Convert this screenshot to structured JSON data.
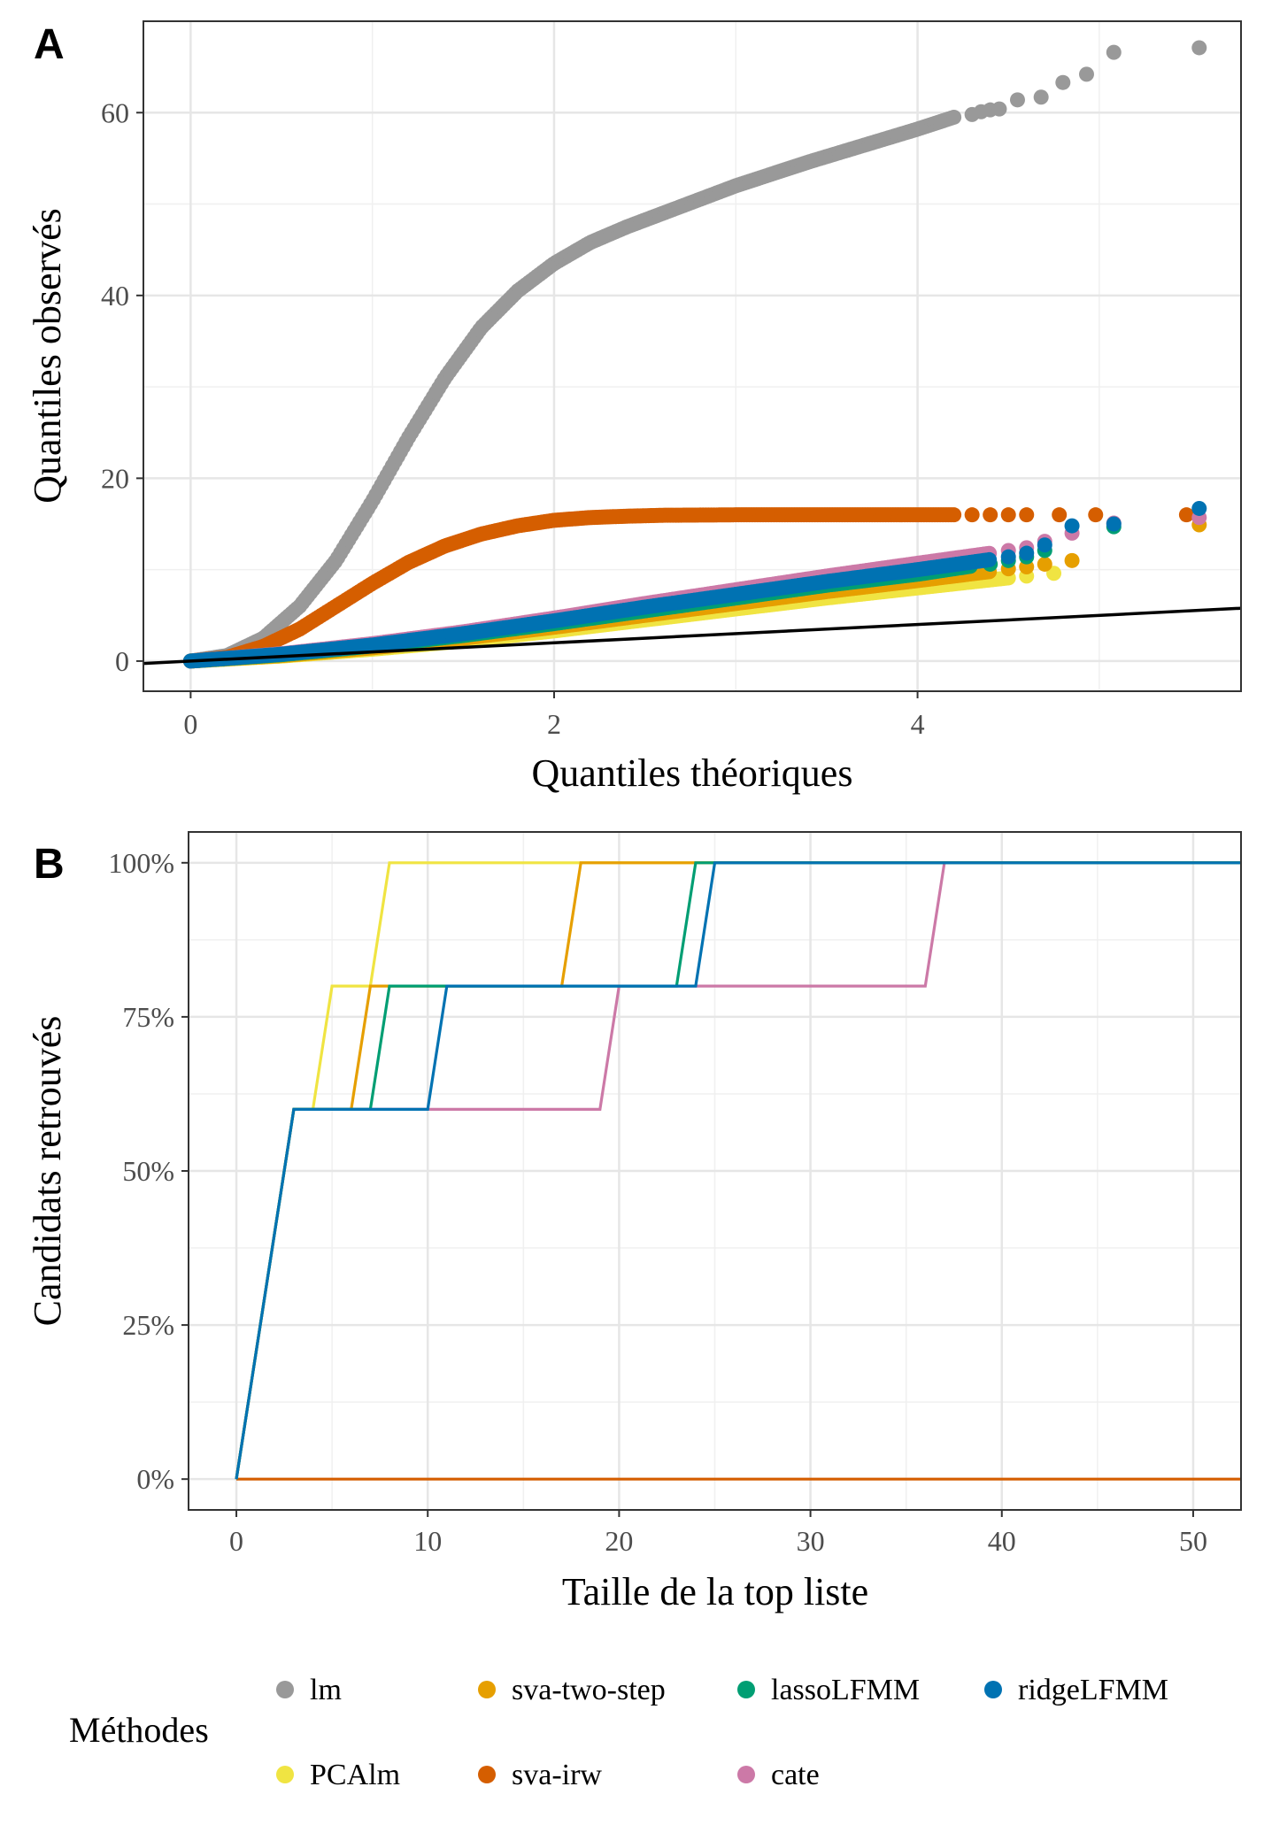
{
  "legend": {
    "title": "Méthodes",
    "position": "bottom",
    "items": [
      {
        "label": "lm",
        "color": "#999999"
      },
      {
        "label": "PCAlm",
        "color": "#F0E442"
      },
      {
        "label": "sva-two-step",
        "color": "#E69F00"
      },
      {
        "label": "sva-irw",
        "color": "#D55E00"
      },
      {
        "label": "lassoLFMM",
        "color": "#009E73"
      },
      {
        "label": "cate",
        "color": "#CC79A7"
      },
      {
        "label": "ridgeLFMM",
        "color": "#0072B2"
      }
    ]
  },
  "chart_data": [
    {
      "panel": "A",
      "type": "scatter",
      "xlabel": "Quantiles théoriques",
      "ylabel": "Quantiles observés",
      "xlim": [
        -0.26,
        5.78
      ],
      "ylim": [
        -3.3,
        70
      ],
      "xticks": [
        {
          "v": 0,
          "label": "0"
        },
        {
          "v": 2,
          "label": "2"
        },
        {
          "v": 4,
          "label": "4"
        }
      ],
      "yticks": [
        {
          "v": 0,
          "label": "0"
        },
        {
          "v": 20,
          "label": "20"
        },
        {
          "v": 40,
          "label": "40"
        },
        {
          "v": 60,
          "label": "60"
        }
      ],
      "grid": true,
      "reference_line": {
        "slope": 1,
        "intercept": 0,
        "color": "#000000"
      },
      "series": [
        {
          "name": "lm",
          "color": "#999999",
          "curve": [
            [
              0,
              0
            ],
            [
              0.2,
              0.6
            ],
            [
              0.4,
              2.5
            ],
            [
              0.6,
              6
            ],
            [
              0.8,
              11
            ],
            [
              1.0,
              17.5
            ],
            [
              1.2,
              24.5
            ],
            [
              1.4,
              31
            ],
            [
              1.6,
              36.5
            ],
            [
              1.8,
              40.5
            ],
            [
              2.0,
              43.5
            ],
            [
              2.2,
              45.8
            ],
            [
              2.4,
              47.5
            ],
            [
              2.6,
              49
            ],
            [
              2.8,
              50.5
            ],
            [
              3.0,
              52
            ],
            [
              3.2,
              53.3
            ],
            [
              3.4,
              54.6
            ],
            [
              3.6,
              55.8
            ],
            [
              3.8,
              57
            ],
            [
              4.0,
              58.2
            ],
            [
              4.2,
              59.5
            ]
          ],
          "tail": [
            [
              4.3,
              59.8
            ],
            [
              4.35,
              60.1
            ],
            [
              4.4,
              60.3
            ],
            [
              4.45,
              60.4
            ],
            [
              4.55,
              61.4
            ],
            [
              4.68,
              61.7
            ],
            [
              4.8,
              63.3
            ],
            [
              4.93,
              64.2
            ],
            [
              5.08,
              66.6
            ],
            [
              5.55,
              67.1
            ]
          ]
        },
        {
          "name": "sva-irw",
          "color": "#D55E00",
          "curve": [
            [
              0,
              0
            ],
            [
              0.2,
              0.4
            ],
            [
              0.4,
              1.6
            ],
            [
              0.6,
              3.5
            ],
            [
              0.8,
              6
            ],
            [
              1.0,
              8.5
            ],
            [
              1.2,
              10.8
            ],
            [
              1.4,
              12.6
            ],
            [
              1.6,
              13.9
            ],
            [
              1.8,
              14.8
            ],
            [
              2.0,
              15.4
            ],
            [
              2.2,
              15.7
            ],
            [
              2.4,
              15.85
            ],
            [
              2.6,
              15.95
            ],
            [
              3.0,
              16
            ],
            [
              4.2,
              16
            ]
          ],
          "tail": [
            [
              4.3,
              16
            ],
            [
              4.4,
              16
            ],
            [
              4.5,
              16
            ],
            [
              4.6,
              16
            ],
            [
              4.78,
              16
            ],
            [
              4.98,
              16
            ],
            [
              5.48,
              16
            ]
          ]
        },
        {
          "name": "PCAlm",
          "color": "#F0E442",
          "curve": [
            [
              0,
              0
            ],
            [
              0.5,
              0.55
            ],
            [
              1.0,
              1.3
            ],
            [
              1.5,
              2.2
            ],
            [
              2.0,
              3.3
            ],
            [
              2.5,
              4.5
            ],
            [
              3.0,
              5.7
            ],
            [
              3.5,
              6.9
            ],
            [
              4.0,
              8.0
            ],
            [
              4.5,
              9.1
            ]
          ],
          "tail": [
            [
              4.6,
              9.3
            ],
            [
              4.75,
              9.6
            ]
          ]
        },
        {
          "name": "sva-two-step",
          "color": "#E69F00",
          "curve": [
            [
              0,
              0
            ],
            [
              0.5,
              0.6
            ],
            [
              1.0,
              1.45
            ],
            [
              1.5,
              2.5
            ],
            [
              2.0,
              3.7
            ],
            [
              2.5,
              5.0
            ],
            [
              3.0,
              6.3
            ],
            [
              3.5,
              7.6
            ],
            [
              4.0,
              8.8
            ],
            [
              4.4,
              9.8
            ]
          ],
          "tail": [
            [
              4.5,
              10.1
            ],
            [
              4.6,
              10.3
            ],
            [
              4.7,
              10.6
            ],
            [
              4.85,
              11.0
            ],
            [
              5.55,
              14.9
            ]
          ]
        },
        {
          "name": "lassoLFMM",
          "color": "#009E73",
          "curve": [
            [
              0,
              0
            ],
            [
              0.5,
              0.7
            ],
            [
              1.0,
              1.65
            ],
            [
              1.5,
              2.8
            ],
            [
              2.0,
              4.1
            ],
            [
              2.5,
              5.5
            ],
            [
              3.0,
              6.9
            ],
            [
              3.5,
              8.3
            ],
            [
              4.0,
              9.5
            ],
            [
              4.3,
              10.4
            ]
          ],
          "tail": [
            [
              4.4,
              10.6
            ],
            [
              4.5,
              11.0
            ],
            [
              4.6,
              11.4
            ],
            [
              4.7,
              12.1
            ],
            [
              5.08,
              14.7
            ]
          ]
        },
        {
          "name": "cate",
          "color": "#CC79A7",
          "curve": [
            [
              0,
              0
            ],
            [
              0.5,
              0.8
            ],
            [
              1.0,
              1.9
            ],
            [
              1.5,
              3.2
            ],
            [
              2.0,
              4.7
            ],
            [
              2.5,
              6.3
            ],
            [
              3.0,
              7.8
            ],
            [
              3.5,
              9.3
            ],
            [
              4.0,
              10.7
            ],
            [
              4.4,
              11.8
            ]
          ],
          "tail": [
            [
              4.5,
              12.1
            ],
            [
              4.6,
              12.4
            ],
            [
              4.7,
              13.1
            ],
            [
              4.85,
              14.0
            ],
            [
              5.08,
              15.1
            ],
            [
              5.55,
              15.7
            ]
          ]
        },
        {
          "name": "ridgeLFMM",
          "color": "#0072B2",
          "curve": [
            [
              0,
              0
            ],
            [
              0.5,
              0.75
            ],
            [
              1.0,
              1.75
            ],
            [
              1.5,
              3.0
            ],
            [
              2.0,
              4.4
            ],
            [
              2.5,
              5.9
            ],
            [
              3.0,
              7.3
            ],
            [
              3.5,
              8.7
            ],
            [
              4.0,
              10.0
            ],
            [
              4.4,
              11.1
            ]
          ],
          "tail": [
            [
              4.5,
              11.4
            ],
            [
              4.6,
              11.8
            ],
            [
              4.7,
              12.7
            ],
            [
              4.85,
              14.8
            ],
            [
              5.08,
              15.0
            ],
            [
              5.55,
              16.7
            ]
          ]
        }
      ]
    },
    {
      "panel": "B",
      "type": "line",
      "xlabel": "Taille de la top liste",
      "ylabel": "Candidats retrouvés",
      "xlim": [
        -2.5,
        52.5
      ],
      "ylim": [
        -0.05,
        1.05
      ],
      "xticks": [
        {
          "v": 0,
          "label": "0"
        },
        {
          "v": 10,
          "label": "10"
        },
        {
          "v": 20,
          "label": "20"
        },
        {
          "v": 30,
          "label": "30"
        },
        {
          "v": 40,
          "label": "40"
        },
        {
          "v": 50,
          "label": "50"
        }
      ],
      "yticks": [
        {
          "v": 0,
          "label": "0%"
        },
        {
          "v": 0.25,
          "label": "25%"
        },
        {
          "v": 0.5,
          "label": "50%"
        },
        {
          "v": 0.75,
          "label": "75%"
        },
        {
          "v": 1,
          "label": "100%"
        }
      ],
      "grid": true,
      "series": [
        {
          "name": "sva-irw",
          "color": "#D55E00",
          "points": [
            [
              0,
              0
            ],
            [
              52.5,
              0
            ]
          ]
        },
        {
          "name": "cate",
          "color": "#CC79A7",
          "points": [
            [
              0,
              0
            ],
            [
              3,
              0.6
            ],
            [
              19,
              0.6
            ],
            [
              20,
              0.8
            ],
            [
              36,
              0.8
            ],
            [
              37,
              1
            ],
            [
              52.5,
              1
            ]
          ]
        },
        {
          "name": "PCAlm",
          "color": "#F0E442",
          "points": [
            [
              0,
              0
            ],
            [
              3,
              0.6
            ],
            [
              4,
              0.6
            ],
            [
              5,
              0.8
            ],
            [
              7,
              0.8
            ],
            [
              8,
              1
            ],
            [
              52.5,
              1
            ]
          ]
        },
        {
          "name": "sva-two-step",
          "color": "#E69F00",
          "points": [
            [
              0,
              0
            ],
            [
              3,
              0.6
            ],
            [
              6,
              0.6
            ],
            [
              7,
              0.8
            ],
            [
              17,
              0.8
            ],
            [
              18,
              1
            ],
            [
              52.5,
              1
            ]
          ]
        },
        {
          "name": "lassoLFMM",
          "color": "#009E73",
          "points": [
            [
              0,
              0
            ],
            [
              3,
              0.6
            ],
            [
              7,
              0.6
            ],
            [
              8,
              0.8
            ],
            [
              23,
              0.8
            ],
            [
              24,
              1
            ],
            [
              52.5,
              1
            ]
          ]
        },
        {
          "name": "ridgeLFMM",
          "color": "#0072B2",
          "points": [
            [
              0,
              0
            ],
            [
              3,
              0.6
            ],
            [
              10,
              0.6
            ],
            [
              11,
              0.8
            ],
            [
              24,
              0.8
            ],
            [
              25,
              1
            ],
            [
              52.5,
              1
            ]
          ]
        }
      ]
    }
  ]
}
